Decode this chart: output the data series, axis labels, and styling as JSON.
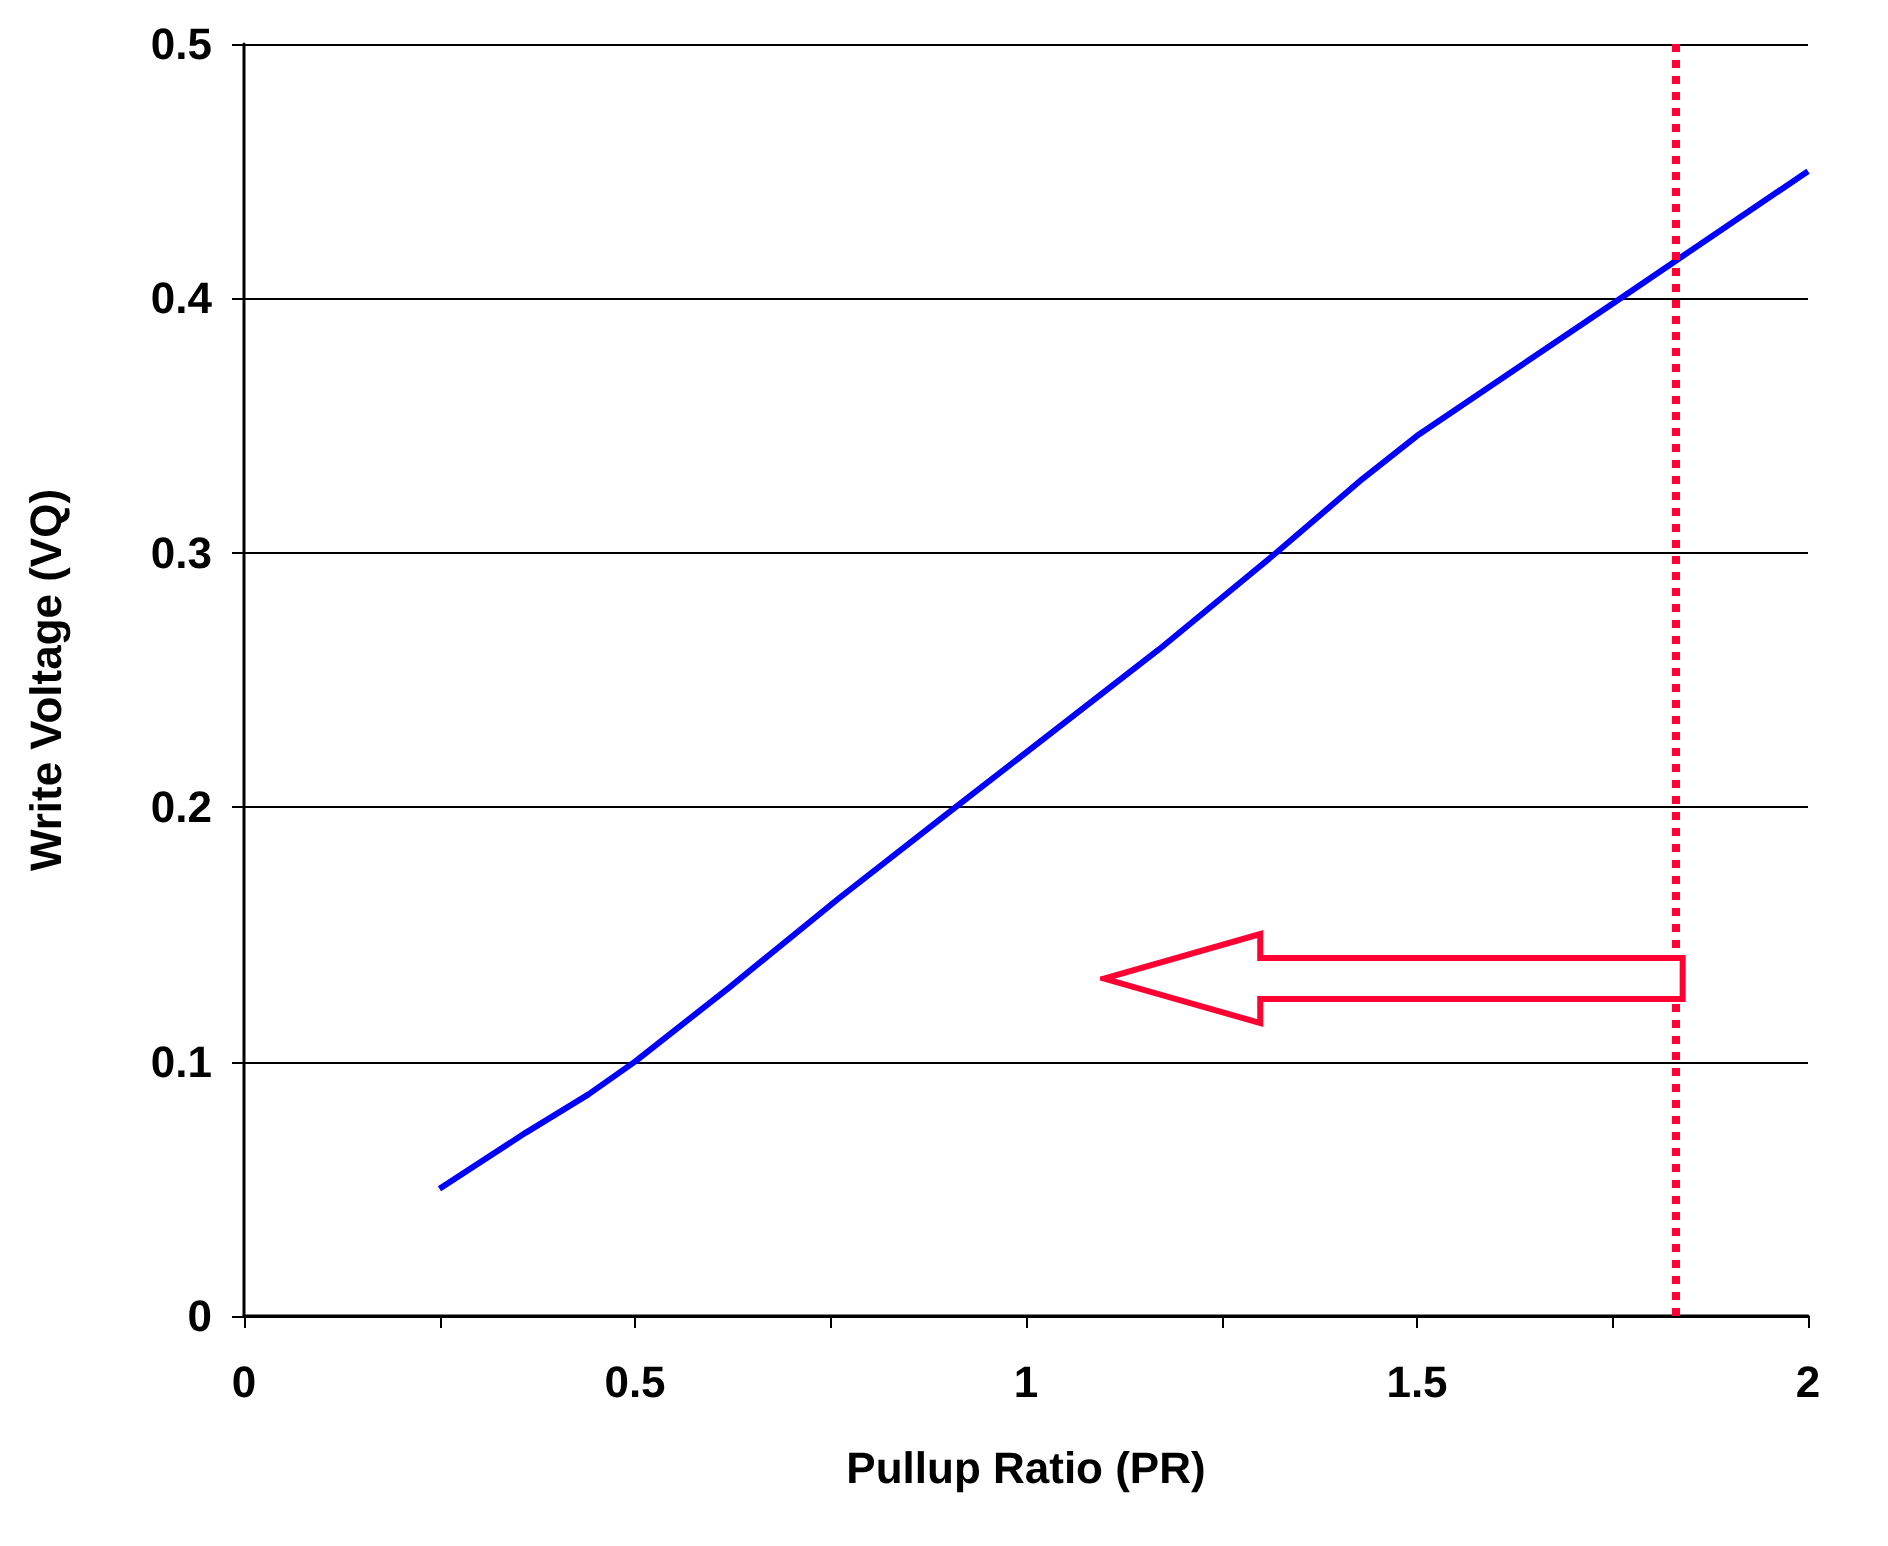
{
  "chart_data": {
    "type": "line",
    "xlabel": "Pullup Ratio (PR)",
    "ylabel": "Write Voltage (VQ)",
    "x": [
      0.25,
      0.36,
      0.44,
      0.5,
      0.62,
      0.76,
      0.91,
      1.17,
      1.32,
      1.43,
      1.5,
      1.76,
      2
    ],
    "series": [
      {
        "color": "#0000ff",
        "values": [
          0.05,
          0.072,
          0.087,
          0.1,
          0.129,
          0.164,
          0.2,
          0.262,
          0.3,
          0.329,
          0.346,
          0.4,
          0.45
        ]
      }
    ],
    "xlim": [
      0,
      2
    ],
    "xticks": [
      0,
      {
        "value": 0.25,
        "label": null
      },
      0.5,
      {
        "value": 0.75,
        "label": null
      },
      1,
      {
        "value": 1.25,
        "label": null
      },
      1.5,
      {
        "value": 1.75,
        "label": null
      },
      2
    ],
    "ylim": [
      0,
      0.5
    ],
    "yticks": [
      0,
      0.1,
      0.2,
      0.3,
      0.4,
      0.5
    ],
    "grid": "y",
    "marker": "none",
    "line_style": "solid",
    "ref_lines": [
      {
        "axis": "x",
        "value": 1.83,
        "color": "#ff0033",
        "line_style": "dotted"
      }
    ]
  }
}
